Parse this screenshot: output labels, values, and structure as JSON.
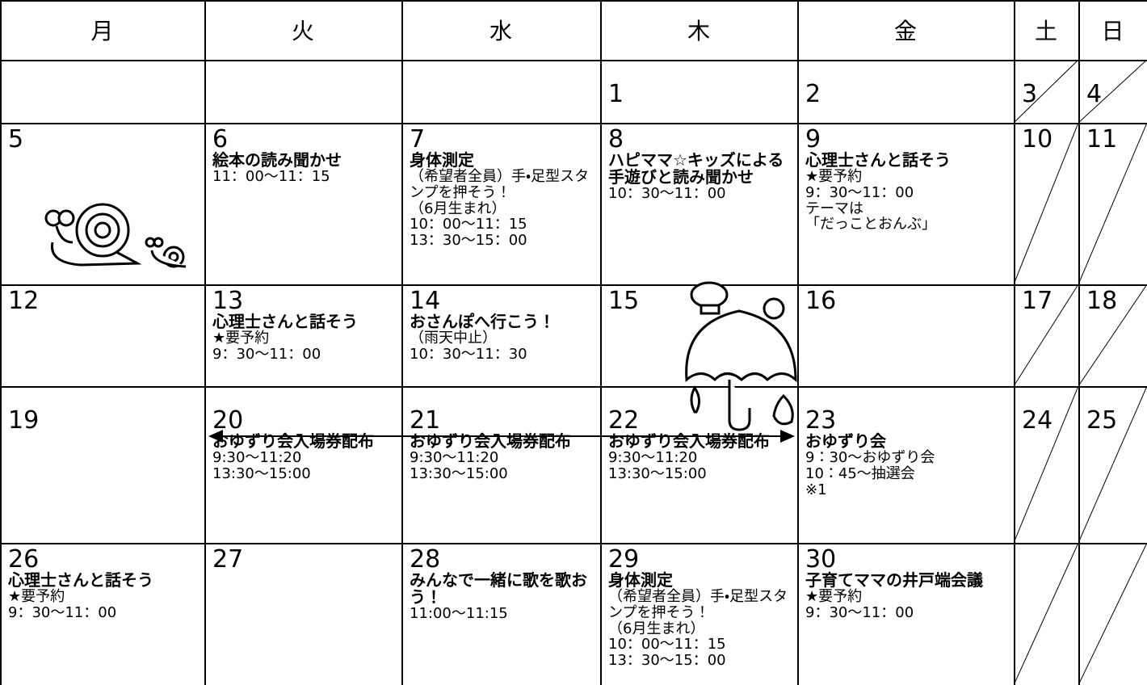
{
  "header": [
    "月",
    "火",
    "水",
    "木",
    "金",
    "土",
    "日"
  ],
  "weeks": [
    [
      null,
      null,
      null,
      {
        "day": 1
      },
      {
        "day": 2
      },
      {
        "day": 3
      },
      {
        "day": 4
      }
    ],
    [
      {
        "day": 5
      },
      {
        "day": 6,
        "title": "絵本の読み聞かせ",
        "details": [
          "11：00～11：15"
        ]
      },
      {
        "day": 7,
        "title": "身体測定",
        "details": [
          "（希望者全員）手・足型スタンプを押そう！",
          "（6月生まれ）",
          "10：00～11：15",
          "13：30～15：00"
        ]
      },
      {
        "day": 8,
        "title": "ハピママ☆キッズによる手遊びと読み聞かせ",
        "details": [
          "10：30～11：00"
        ]
      },
      {
        "day": 9,
        "title": "心理士さんと話そう",
        "details": [
          "★要予約",
          "9：30～11：00",
          "テーマは",
          "「だっことおんぶ」"
        ]
      },
      {
        "day": 10
      },
      {
        "day": 11
      }
    ],
    [
      {
        "day": 12
      },
      {
        "day": 13,
        "title": "心理士さんと話そう",
        "details": [
          "★要予約",
          "9：30～11：00"
        ]
      },
      {
        "day": 14,
        "title": "おさんぽへ行こう！",
        "details": [
          "（雨天中止）",
          "10：30～11：30"
        ]
      },
      {
        "day": 15
      },
      {
        "day": 16
      },
      {
        "day": 17
      },
      {
        "day": 18
      }
    ],
    [
      {
        "day": 19
      },
      {
        "day": 20,
        "title": "おゆずり会入場券配布",
        "details": [
          "9:30～11:20",
          "13:30～15:00"
        ]
      },
      {
        "day": 21,
        "title": "おゆずり会入場券配布",
        "details": [
          "9:30～11:20",
          "13:30～15:00"
        ]
      },
      {
        "day": 22,
        "title": "おゆずり会入場券配布",
        "details": [
          "9:30～11:20",
          "13:30～15:00"
        ]
      },
      {
        "day": 23,
        "title": "おゆずり会",
        "details": [
          "9：30～おゆずり会",
          "10：45～抽選会",
          "※1"
        ]
      },
      {
        "day": 24
      },
      {
        "day": 25
      }
    ],
    [
      {
        "day": 26,
        "title": "心理士さんと話そう",
        "details": [
          "★要予約",
          "9：30～11：00"
        ]
      },
      {
        "day": 27
      },
      {
        "day": 28,
        "title": "みんなで一緒に歌を歌おう！",
        "details": [
          "11:00～11:15"
        ]
      },
      {
        "day": 29,
        "title": "身体測定",
        "details": [
          "（希望者全員）手・足型スタンプを押そう！",
          "（6月生まれ）",
          "10：00～11：15",
          "13：30～15：00"
        ]
      },
      {
        "day": 30,
        "title": "子育てママの井戸端会議",
        "details": [
          "★要予約",
          "9：30～11：00"
        ]
      },
      null,
      null
    ]
  ]
}
